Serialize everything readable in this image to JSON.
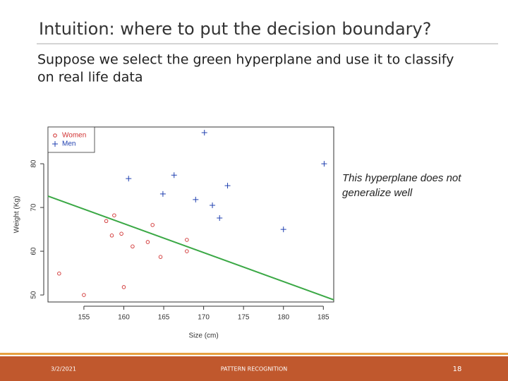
{
  "title": "Intuition: where to put the decision boundary?",
  "body": [
    "Suppose we select the green hyperplane and use it to classify",
    "on real life data"
  ],
  "footer": {
    "date": "3/2/2021",
    "center": "PATTERN RECOGNITION",
    "page": "18"
  },
  "chart_data": {
    "type": "scatter",
    "xlabel": "Size (cm)",
    "ylabel": "Weight (Kg)",
    "xlim": [
      150.5,
      186.3
    ],
    "ylim": [
      48.4,
      88.4
    ],
    "xticks": [
      155,
      160,
      165,
      170,
      175,
      180,
      185
    ],
    "yticks": [
      50,
      60,
      70,
      80
    ],
    "legend": "top-left",
    "series": [
      {
        "name": "Women",
        "color": "#d03030",
        "marker": "circle",
        "x": [
          151.9,
          155,
          158.8,
          157.8,
          158.5,
          159.7,
          161.1,
          160.0,
          163.0,
          163.6,
          164.6,
          167.9,
          167.9
        ],
        "y": [
          54.9,
          50,
          68.2,
          66.9,
          63.6,
          64.0,
          61.1,
          51.8,
          62.1,
          66.0,
          58.7,
          62.6,
          60.0
        ]
      },
      {
        "name": "Men",
        "color": "#2040b0",
        "marker": "plus",
        "x": [
          170.1,
          160.6,
          166.3,
          164.9,
          169.0,
          171.1,
          173.0,
          172.0,
          180.0,
          185.1
        ],
        "y": [
          87.1,
          76.6,
          77.4,
          73.1,
          71.8,
          70.5,
          75.0,
          67.6,
          65.0,
          80.0
        ]
      }
    ],
    "line": {
      "x": [
        150.5,
        186.3
      ],
      "y": [
        72.6,
        48.9
      ],
      "color": "#3aa845"
    },
    "annotation": [
      "This hyperplane does not",
      "generalize well"
    ]
  }
}
